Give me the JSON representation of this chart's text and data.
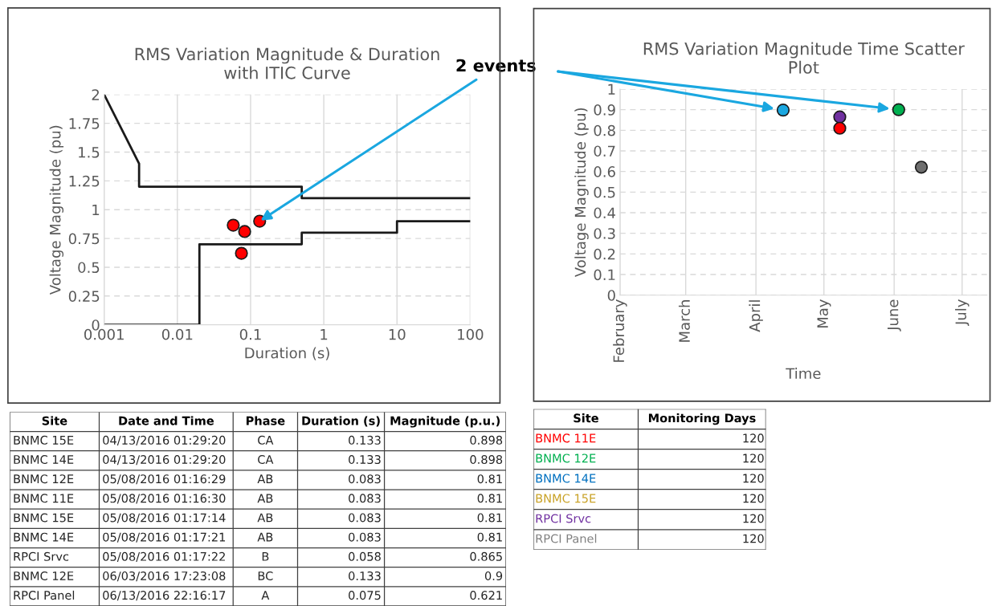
{
  "chart_data": [
    {
      "type": "scatter",
      "title": "RMS Variation Magnitude & Duration\nwith ITIC Curve",
      "xlabel": "Duration (s)",
      "ylabel": "Voltage Magnitude (pu)",
      "log": "x",
      "grid": true,
      "xlim": [
        0.001,
        100
      ],
      "xticks": [
        0.001,
        0.01,
        0.1,
        1,
        10,
        100
      ],
      "ylim": [
        0,
        2
      ],
      "yticks": [
        0,
        0.25,
        0.5,
        0.75,
        1,
        1.25,
        1.5,
        1.75,
        2
      ],
      "series": [
        {
          "type": "line",
          "color": "#1a1a1a",
          "x": [
            0.001,
            0.003,
            0.003,
            0.5,
            0.5,
            100
          ],
          "values": [
            2,
            1.4,
            1.2,
            1.2,
            1.1,
            1.1
          ]
        },
        {
          "type": "line",
          "color": "#1a1a1a",
          "x": [
            0.001,
            0.02,
            0.02,
            0.5,
            0.5,
            10,
            10,
            100
          ],
          "values": [
            0,
            0,
            0.7,
            0.7,
            0.8,
            0.8,
            0.9,
            0.9
          ]
        },
        {
          "type": "scatter",
          "marker": "circle",
          "color": "#ff0000",
          "x": [
            0.133,
            0.083,
            0.058,
            0.075
          ],
          "values": [
            0.9,
            0.81,
            0.865,
            0.621
          ]
        }
      ],
      "annotations": [
        {
          "text": "2 events",
          "x": 0.133,
          "y": 0.9
        }
      ]
    },
    {
      "type": "scatter",
      "title": "RMS Variation Magnitude Time Scatter\nPlot",
      "xlabel": "Time",
      "ylabel": "Voltage Magnitude (pu)",
      "grid": true,
      "marker": "circle",
      "xlim": [
        "2016-02-01",
        "2016-07-12"
      ],
      "xticks": [
        {
          "value": "2016-02-01",
          "label": "February"
        },
        {
          "value": "2016-03-01",
          "label": "March"
        },
        {
          "value": "2016-04-01",
          "label": "April"
        },
        {
          "value": "2016-05-01",
          "label": "May"
        },
        {
          "value": "2016-06-01",
          "label": "June"
        },
        {
          "value": "2016-07-01",
          "label": "July"
        }
      ],
      "ylim": [
        0,
        1
      ],
      "yticks": [
        0,
        0.1,
        0.2,
        0.3,
        0.4,
        0.5,
        0.6,
        0.7,
        0.8,
        0.9,
        1
      ],
      "series": [
        {
          "type": "scatter",
          "x": [
            "2016-04-13",
            "2016-05-08",
            "2016-05-08",
            "2016-06-03",
            "2016-06-13"
          ],
          "values": [
            0.898,
            0.865,
            0.81,
            0.9,
            0.621
          ],
          "colors": [
            "#1aa7e0",
            "#7030a0",
            "#ff0000",
            "#00b050",
            "#6e6e6e"
          ]
        }
      ]
    },
    {
      "type": "other",
      "categories": [
        "Site",
        "Date and Time",
        "Phase",
        "Duration (s)",
        "Magnitude (p.u.)"
      ],
      "annotations": [
        "BNMC 15E",
        "04/13/2016 01:29:20",
        "CA",
        "0.133",
        "0.898",
        "BNMC 14E",
        "04/13/2016 01:29:20",
        "CA",
        "0.133",
        "0.898",
        "BNMC 12E",
        "05/08/2016 01:16:29",
        "AB",
        "0.083",
        "0.81",
        "BNMC 11E",
        "05/08/2016 01:16:30",
        "AB",
        "0.083",
        "0.81",
        "BNMC 15E",
        "05/08/2016 01:17:14",
        "AB",
        "0.083",
        "0.81",
        "BNMC 14E",
        "05/08/2016 01:17:21",
        "AB",
        "0.083",
        "0.81",
        "RPCI Srvc",
        "05/08/2016 01:17:22",
        "B",
        "0.058",
        "0.865",
        "BNMC 12E",
        "06/03/2016 17:23:08",
        "BC",
        "0.133",
        "0.9",
        "RPCI Panel",
        "06/13/2016 22:16:17",
        "A",
        "0.075",
        "0.621"
      ]
    },
    {
      "type": "other",
      "categories": [
        "Site",
        "Monitoring Days"
      ],
      "annotations": [
        "BNMC 11E",
        "120",
        "BNMC 12E",
        "120",
        "BNMC 14E",
        "120",
        "BNMC 15E",
        "120",
        "RPCI Srvc",
        "120",
        "RPCI Panel",
        "120"
      ],
      "colors": [
        "#ff0000",
        "#00b050",
        "#0070c0",
        "#c9a227",
        "#7030a0",
        "#808080"
      ]
    }
  ]
}
